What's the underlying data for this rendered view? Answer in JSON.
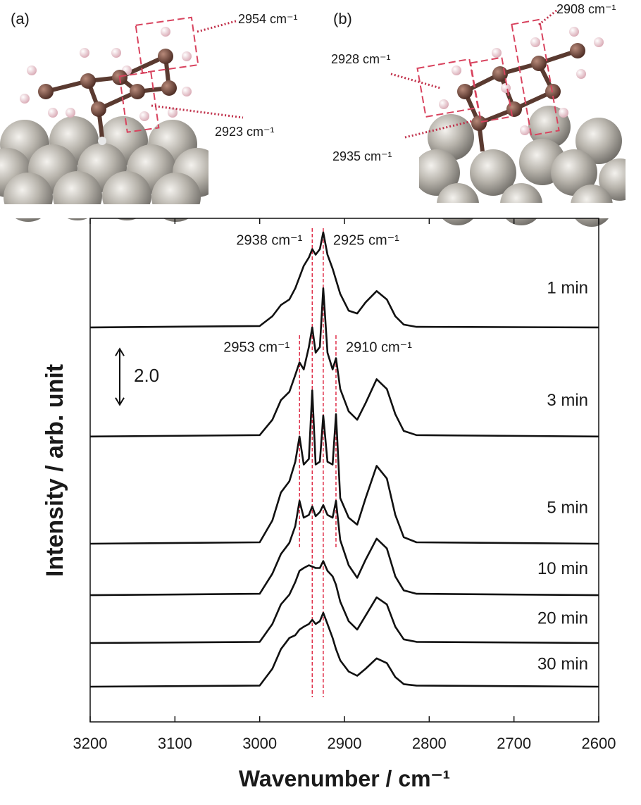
{
  "structures": [
    {
      "label": "(a)",
      "modes": [
        "2954 cm⁻¹",
        "2923 cm⁻¹"
      ]
    },
    {
      "label": "(b)",
      "modes": [
        "2908 cm⁻¹",
        "2928 cm⁻¹",
        "2935 cm⁻¹"
      ]
    }
  ],
  "chart_data": {
    "type": "line",
    "xlabel": "Wavenumber / cm⁻¹",
    "ylabel": "Intensity / arb. unit",
    "x": [
      3200,
      3000,
      2985,
      2975,
      2965,
      2958,
      2953,
      2948,
      2942,
      2938,
      2934,
      2929,
      2925,
      2920,
      2914,
      2910,
      2905,
      2895,
      2885,
      2875,
      2862,
      2850,
      2840,
      2830,
      2815,
      2600
    ],
    "xlim": [
      3200,
      2600
    ],
    "xticks": [
      3200,
      3100,
      3000,
      2900,
      2800,
      2700,
      2600
    ],
    "ylim": [
      0,
      18
    ],
    "series": [
      {
        "name": "1 min",
        "color": "#111111",
        "values": [
          14.1,
          14.15,
          14.5,
          14.9,
          15.1,
          15.5,
          15.9,
          16.3,
          16.6,
          16.9,
          16.7,
          16.9,
          17.5,
          16.7,
          16.2,
          15.8,
          15.3,
          14.7,
          14.6,
          15.0,
          15.4,
          15.1,
          14.5,
          14.2,
          14.12,
          14.1
        ]
      },
      {
        "name": "3 min",
        "color": "#111111",
        "values": [
          10.2,
          10.25,
          10.8,
          11.5,
          11.8,
          12.4,
          12.85,
          12.6,
          13.4,
          14.1,
          13.2,
          13.4,
          15.5,
          13.2,
          12.6,
          13.0,
          11.9,
          11.1,
          10.8,
          11.4,
          12.25,
          11.9,
          11.0,
          10.4,
          10.25,
          10.2
        ]
      },
      {
        "name": "5 min",
        "color": "#111111",
        "values": [
          6.37,
          6.42,
          7.2,
          8.2,
          8.6,
          9.3,
          10.2,
          9.2,
          9.4,
          11.85,
          9.2,
          9.3,
          10.95,
          9.3,
          9.2,
          11.0,
          8.0,
          7.3,
          7.05,
          8.0,
          9.15,
          8.7,
          7.4,
          6.6,
          6.42,
          6.37
        ]
      },
      {
        "name": "10 min",
        "color": "#111111",
        "values": [
          4.53,
          4.58,
          5.3,
          6.0,
          6.4,
          7.0,
          7.9,
          7.3,
          7.4,
          7.7,
          7.35,
          7.5,
          7.75,
          7.4,
          7.3,
          7.9,
          6.5,
          5.6,
          5.15,
          5.8,
          6.55,
          6.2,
          5.2,
          4.7,
          4.58,
          4.53
        ]
      },
      {
        "name": "20 min",
        "color": "#111111",
        "values": [
          2.82,
          2.86,
          3.5,
          4.2,
          4.55,
          5.0,
          5.4,
          5.5,
          5.6,
          5.55,
          5.5,
          5.5,
          5.75,
          5.4,
          5.2,
          4.9,
          4.3,
          3.6,
          3.3,
          3.8,
          4.45,
          4.2,
          3.4,
          2.95,
          2.86,
          2.82
        ]
      },
      {
        "name": "30 min",
        "color": "#111111",
        "values": [
          1.26,
          1.3,
          1.9,
          2.6,
          3.0,
          3.1,
          3.3,
          3.4,
          3.5,
          3.65,
          3.5,
          3.6,
          3.9,
          3.5,
          3.0,
          2.6,
          2.2,
          1.8,
          1.65,
          1.9,
          2.27,
          2.1,
          1.6,
          1.35,
          1.3,
          1.26
        ]
      }
    ],
    "annotations": [
      {
        "text": "2938 cm⁻¹",
        "x": 2938
      },
      {
        "text": "2925 cm⁻¹",
        "x": 2925
      },
      {
        "text": "2953 cm⁻¹",
        "x": 2953
      },
      {
        "text": "2910 cm⁻¹",
        "x": 2910
      }
    ],
    "annotation_color": "#e0304a",
    "scale_bar": {
      "value": 2,
      "label": "2.0"
    }
  }
}
